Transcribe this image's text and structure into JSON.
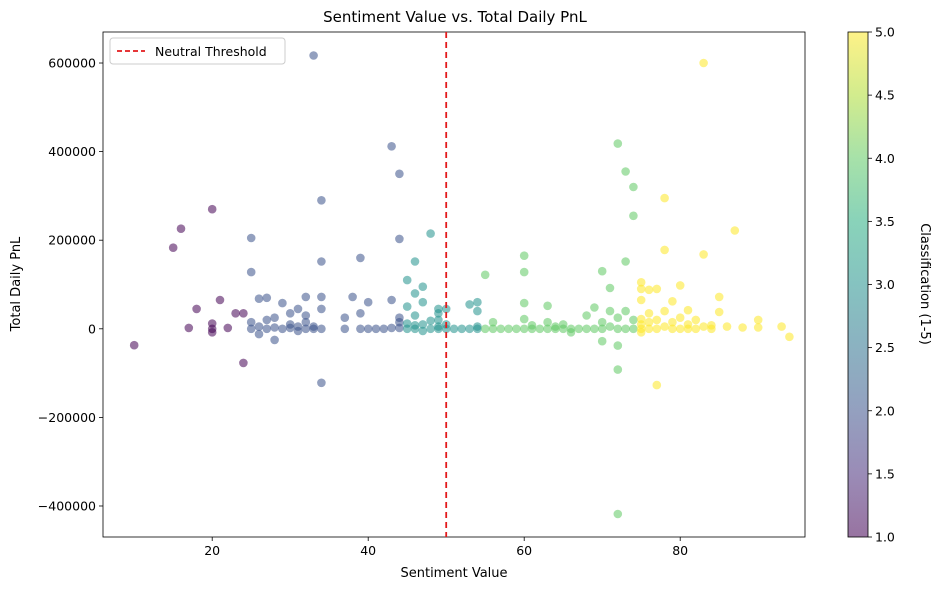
{
  "chart_data": {
    "type": "scatter",
    "title": "Sentiment Value vs. Total Daily PnL",
    "xlabel": "Sentiment Value",
    "ylabel": "Total Daily PnL",
    "xlim": [
      6,
      96
    ],
    "ylim": [
      -470000,
      670000
    ],
    "xticks": [
      20,
      40,
      60,
      80
    ],
    "yticks": [
      -400000,
      -200000,
      0,
      200000,
      400000,
      600000
    ],
    "ytick_labels": [
      "−400000",
      "−200000",
      "0",
      "200000",
      "400000",
      "600000"
    ],
    "grid": false,
    "legend": {
      "position": "upper-left",
      "entries": [
        {
          "label": "Neutral Threshold",
          "style": "red dashed line"
        }
      ]
    },
    "reference_line": {
      "axis": "x",
      "value": 50,
      "label": "Neutral Threshold",
      "color": "#e31a1c",
      "style": "dashed"
    },
    "colorbar": {
      "label": "Classification (1-5)",
      "colormap": "viridis",
      "range": [
        1.0,
        5.0
      ],
      "ticks": [
        1.0,
        1.5,
        2.0,
        2.5,
        3.0,
        3.5,
        4.0,
        4.5,
        5.0
      ],
      "tick_labels": [
        "1.0",
        "1.5",
        "2.0",
        "2.5",
        "3.0",
        "3.5",
        "4.0",
        "4.5",
        "5.0"
      ]
    },
    "marker_alpha": 0.55,
    "points": [
      [
        10,
        -37000,
        1
      ],
      [
        15,
        183000,
        1
      ],
      [
        16,
        226000,
        1
      ],
      [
        17,
        2000,
        1
      ],
      [
        18,
        45000,
        1
      ],
      [
        20,
        270000,
        1
      ],
      [
        20,
        12000,
        1
      ],
      [
        20,
        0,
        1
      ],
      [
        20,
        -8000,
        1
      ],
      [
        21,
        65000,
        1
      ],
      [
        22,
        2000,
        1
      ],
      [
        23,
        35000,
        1
      ],
      [
        24,
        35000,
        1
      ],
      [
        24,
        -77000,
        1
      ],
      [
        25,
        205000,
        2
      ],
      [
        25,
        128000,
        2
      ],
      [
        25,
        15000,
        2
      ],
      [
        25,
        0,
        2
      ],
      [
        26,
        68000,
        2
      ],
      [
        26,
        5000,
        2
      ],
      [
        26,
        -12000,
        2
      ],
      [
        27,
        70000,
        2
      ],
      [
        27,
        20000,
        2
      ],
      [
        27,
        0,
        2
      ],
      [
        28,
        25000,
        2
      ],
      [
        28,
        -25000,
        2
      ],
      [
        28,
        3000,
        2
      ],
      [
        29,
        58000,
        2
      ],
      [
        29,
        0,
        2
      ],
      [
        30,
        35000,
        2
      ],
      [
        30,
        10000,
        2
      ],
      [
        30,
        2000,
        2
      ],
      [
        31,
        45000,
        2
      ],
      [
        31,
        5000,
        2
      ],
      [
        31,
        -5000,
        2
      ],
      [
        32,
        72000,
        2
      ],
      [
        32,
        30000,
        2
      ],
      [
        32,
        15000,
        2
      ],
      [
        32,
        0,
        2
      ],
      [
        33,
        617000,
        2
      ],
      [
        33,
        5000,
        2
      ],
      [
        33,
        0,
        2
      ],
      [
        34,
        290000,
        2
      ],
      [
        34,
        152000,
        2
      ],
      [
        34,
        72000,
        2
      ],
      [
        34,
        45000,
        2
      ],
      [
        34,
        0,
        2
      ],
      [
        34,
        -122000,
        2
      ],
      [
        37,
        25000,
        2
      ],
      [
        37,
        0,
        2
      ],
      [
        38,
        72000,
        2
      ],
      [
        39,
        160000,
        2
      ],
      [
        39,
        35000,
        2
      ],
      [
        39,
        0,
        2
      ],
      [
        40,
        60000,
        2
      ],
      [
        40,
        0,
        2
      ],
      [
        41,
        0,
        2
      ],
      [
        42,
        0,
        2
      ],
      [
        43,
        412000,
        2
      ],
      [
        43,
        65000,
        2
      ],
      [
        43,
        2000,
        2
      ],
      [
        44,
        350000,
        2
      ],
      [
        44,
        203000,
        2
      ],
      [
        44,
        25000,
        2
      ],
      [
        44,
        15000,
        2
      ],
      [
        44,
        2000,
        2
      ],
      [
        45,
        110000,
        3
      ],
      [
        45,
        50000,
        3
      ],
      [
        45,
        12000,
        3
      ],
      [
        45,
        0,
        3
      ],
      [
        46,
        152000,
        3
      ],
      [
        46,
        80000,
        3
      ],
      [
        46,
        30000,
        3
      ],
      [
        46,
        8000,
        3
      ],
      [
        46,
        0,
        3
      ],
      [
        47,
        95000,
        3
      ],
      [
        47,
        60000,
        3
      ],
      [
        47,
        10000,
        3
      ],
      [
        47,
        -5000,
        3
      ],
      [
        48,
        215000,
        3
      ],
      [
        48,
        18000,
        3
      ],
      [
        48,
        0,
        3
      ],
      [
        49,
        45000,
        3
      ],
      [
        49,
        35000,
        3
      ],
      [
        49,
        20000,
        3
      ],
      [
        49,
        5000,
        3
      ],
      [
        49,
        0,
        3
      ],
      [
        50,
        45000,
        3
      ],
      [
        50,
        10000,
        3
      ],
      [
        50,
        0,
        3
      ],
      [
        51,
        0,
        3
      ],
      [
        52,
        0,
        3
      ],
      [
        53,
        55000,
        3
      ],
      [
        53,
        0,
        3
      ],
      [
        54,
        60000,
        3
      ],
      [
        54,
        40000,
        3
      ],
      [
        54,
        5000,
        3
      ],
      [
        54,
        0,
        3
      ],
      [
        55,
        122000,
        4
      ],
      [
        55,
        0,
        4
      ],
      [
        56,
        15000,
        4
      ],
      [
        56,
        0,
        4
      ],
      [
        57,
        0,
        4
      ],
      [
        58,
        0,
        4
      ],
      [
        59,
        0,
        4
      ],
      [
        60,
        165000,
        4
      ],
      [
        60,
        128000,
        4
      ],
      [
        60,
        58000,
        4
      ],
      [
        60,
        22000,
        4
      ],
      [
        60,
        0,
        4
      ],
      [
        61,
        8000,
        4
      ],
      [
        61,
        0,
        4
      ],
      [
        62,
        0,
        4
      ],
      [
        63,
        52000,
        4
      ],
      [
        63,
        15000,
        4
      ],
      [
        63,
        0,
        4
      ],
      [
        64,
        5000,
        4
      ],
      [
        64,
        0,
        4
      ],
      [
        65,
        10000,
        4
      ],
      [
        65,
        0,
        4
      ],
      [
        66,
        0,
        4
      ],
      [
        66,
        -8000,
        4
      ],
      [
        67,
        0,
        4
      ],
      [
        68,
        30000,
        4
      ],
      [
        68,
        0,
        4
      ],
      [
        69,
        48000,
        4
      ],
      [
        69,
        0,
        4
      ],
      [
        70,
        130000,
        4
      ],
      [
        70,
        15000,
        4
      ],
      [
        70,
        0,
        4
      ],
      [
        70,
        -28000,
        4
      ],
      [
        71,
        92000,
        4
      ],
      [
        71,
        40000,
        4
      ],
      [
        71,
        5000,
        4
      ],
      [
        72,
        418000,
        4
      ],
      [
        72,
        25000,
        4
      ],
      [
        72,
        0,
        4
      ],
      [
        72,
        -38000,
        4
      ],
      [
        72,
        -92000,
        4
      ],
      [
        72,
        -418000,
        4
      ],
      [
        73,
        355000,
        4
      ],
      [
        73,
        152000,
        4
      ],
      [
        73,
        40000,
        4
      ],
      [
        73,
        0,
        4
      ],
      [
        74,
        320000,
        4
      ],
      [
        74,
        255000,
        4
      ],
      [
        74,
        20000,
        4
      ],
      [
        74,
        0,
        4
      ],
      [
        75,
        105000,
        5
      ],
      [
        75,
        90000,
        5
      ],
      [
        75,
        65000,
        5
      ],
      [
        75,
        22000,
        5
      ],
      [
        75,
        10000,
        5
      ],
      [
        75,
        0,
        5
      ],
      [
        75,
        -8000,
        5
      ],
      [
        76,
        88000,
        5
      ],
      [
        76,
        35000,
        5
      ],
      [
        76,
        15000,
        5
      ],
      [
        76,
        0,
        5
      ],
      [
        77,
        90000,
        5
      ],
      [
        77,
        20000,
        5
      ],
      [
        77,
        0,
        5
      ],
      [
        77,
        -127000,
        5
      ],
      [
        78,
        295000,
        5
      ],
      [
        78,
        178000,
        5
      ],
      [
        78,
        40000,
        5
      ],
      [
        78,
        5000,
        5
      ],
      [
        79,
        62000,
        5
      ],
      [
        79,
        15000,
        5
      ],
      [
        79,
        0,
        5
      ],
      [
        80,
        98000,
        5
      ],
      [
        80,
        25000,
        5
      ],
      [
        80,
        0,
        5
      ],
      [
        81,
        42000,
        5
      ],
      [
        81,
        10000,
        5
      ],
      [
        81,
        0,
        5
      ],
      [
        82,
        20000,
        5
      ],
      [
        82,
        0,
        5
      ],
      [
        83,
        600000,
        5
      ],
      [
        83,
        168000,
        5
      ],
      [
        83,
        5000,
        5
      ],
      [
        84,
        8000,
        5
      ],
      [
        84,
        0,
        5
      ],
      [
        85,
        72000,
        5
      ],
      [
        85,
        38000,
        5
      ],
      [
        86,
        5000,
        5
      ],
      [
        87,
        222000,
        5
      ],
      [
        88,
        3000,
        5
      ],
      [
        90,
        20000,
        5
      ],
      [
        90,
        3000,
        5
      ],
      [
        93,
        5000,
        5
      ],
      [
        94,
        -18000,
        5
      ]
    ]
  }
}
